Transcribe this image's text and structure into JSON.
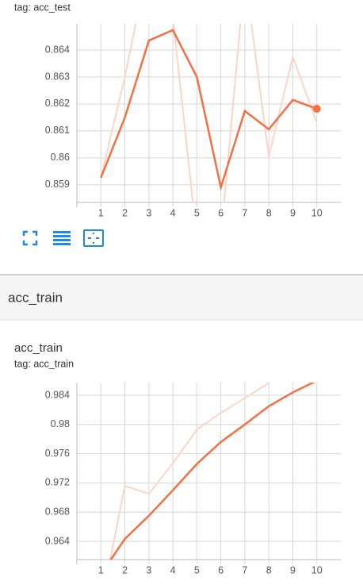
{
  "section_title": "acc_train",
  "chart_data": [
    {
      "type": "line",
      "subtitle": "tag: acc_test",
      "x": [
        1,
        2,
        3,
        4,
        5,
        6,
        7,
        8,
        9,
        10
      ],
      "xlim": [
        0,
        11
      ],
      "xticks": [
        1,
        2,
        3,
        4,
        5,
        6,
        7,
        8,
        9,
        10
      ],
      "ylim": [
        0.85835,
        0.86497
      ],
      "yticks": [
        0.859,
        0.86,
        0.861,
        0.862,
        0.863,
        0.864
      ],
      "grid": true,
      "series": [
        {
          "color": "#fcd5c6",
          "values": [
            0.85926,
            0.863,
            0.86732,
            0.8652,
            0.857,
            0.857,
            0.8668,
            0.86005,
            0.86375,
            0.8613
          ]
        },
        {
          "color": "#f37043",
          "values": [
            0.85926,
            0.8615,
            0.86435,
            0.86474,
            0.863,
            0.85891,
            0.86174,
            0.86106,
            0.86215,
            0.86182
          ]
        }
      ]
    },
    {
      "type": "line",
      "title": "acc_train",
      "subtitle": "tag: acc_train",
      "x": [
        1,
        2,
        3,
        4,
        5,
        6,
        7,
        8,
        9,
        10
      ],
      "xlim": [
        0,
        11
      ],
      "xticks": [
        1,
        2,
        3,
        4,
        5,
        6,
        7,
        8,
        9,
        10
      ],
      "ylim": [
        0.9615,
        0.98574
      ],
      "yticks": [
        0.964,
        0.968,
        0.972,
        0.976,
        0.98,
        0.984
      ],
      "grid": true,
      "series": [
        {
          "color": "#fcd5c6",
          "values": [
            0.955,
            0.9716,
            0.9705,
            0.9747,
            0.9793,
            0.9816,
            0.9836,
            0.9857,
            0.9875,
            0.989
          ]
        },
        {
          "color": "#f37043",
          "values": [
            0.9595,
            0.96433,
            0.9675,
            0.971,
            0.9746,
            0.9776,
            0.98,
            0.9825,
            0.9844,
            0.986
          ]
        }
      ]
    }
  ]
}
